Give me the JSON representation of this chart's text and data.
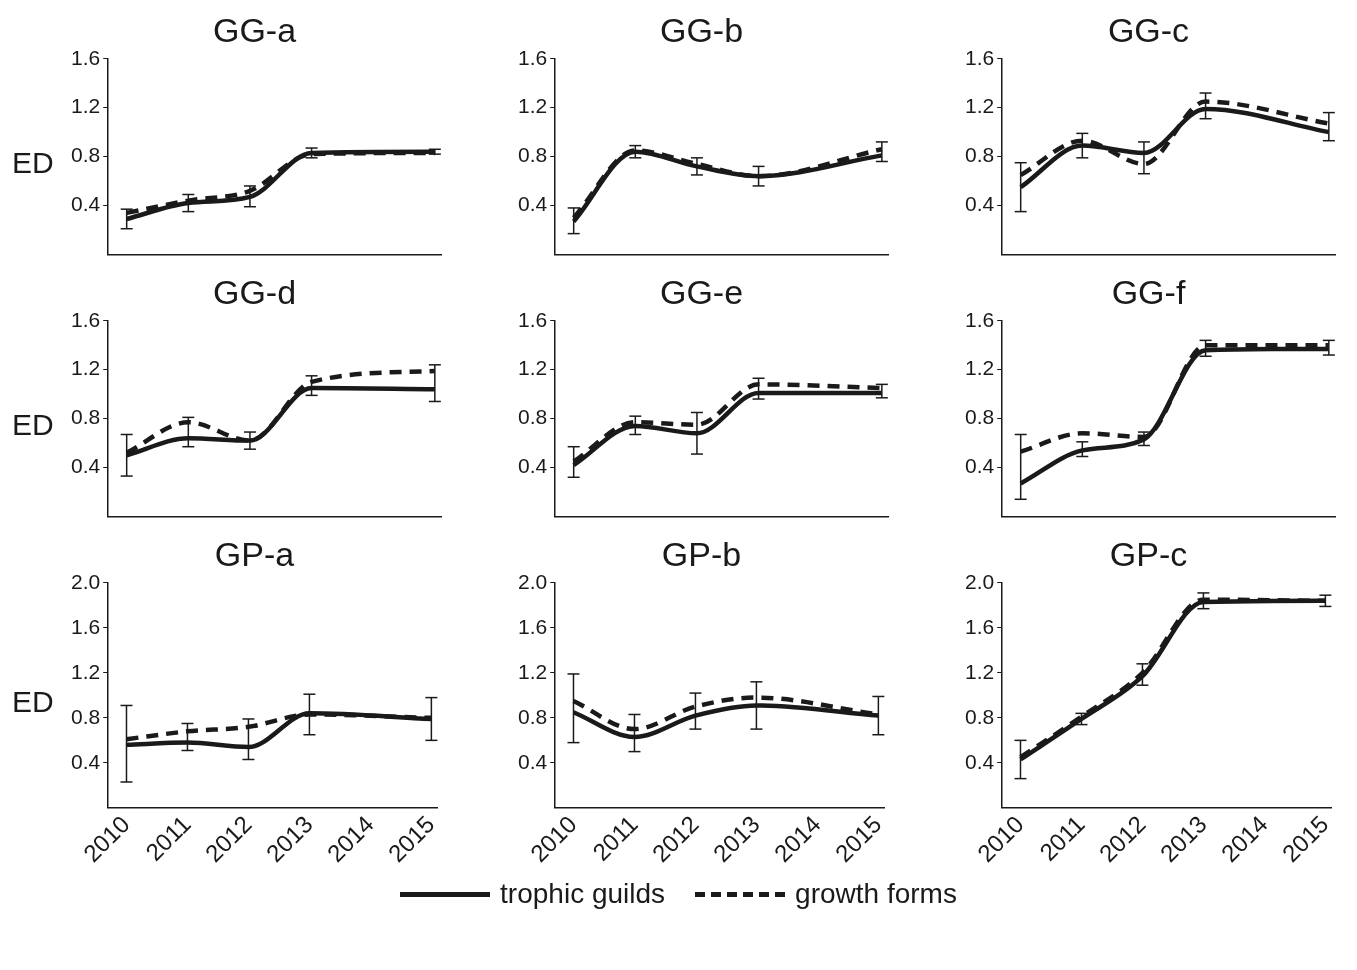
{
  "chart_data": [
    {
      "type": "line",
      "title": "GG-a",
      "ylabel": "ED",
      "x": [
        2010,
        2011,
        2012,
        2013,
        2015
      ],
      "xlim": [
        2009.7,
        2015.1
      ],
      "xticks": [
        2010,
        2011,
        2012,
        2013,
        2014,
        2015
      ],
      "ylim": [
        0,
        1.6
      ],
      "yticks": [
        0.4,
        0.8,
        1.2,
        1.6
      ],
      "tick_labels": "y",
      "grid": false,
      "marker": "none",
      "series": [
        {
          "color": "#1a1a1a",
          "line_style": "solid",
          "values": [
            0.29,
            0.42,
            0.47,
            0.83,
            0.84
          ],
          "errors": [
            [
              0.21,
              0.37
            ],
            [
              0.35,
              0.49
            ],
            [
              0.39,
              0.56
            ],
            [
              0.79,
              0.87
            ],
            [
              0.82,
              0.86
            ]
          ]
        },
        {
          "color": "#1a1a1a",
          "line_style": "dashed",
          "values": [
            0.34,
            0.44,
            0.52,
            0.82,
            0.83
          ]
        }
      ]
    },
    {
      "type": "line",
      "title": "GG-b",
      "x": [
        2010,
        2011,
        2012,
        2013,
        2015
      ],
      "xlim": [
        2009.7,
        2015.1
      ],
      "xticks": [
        2010,
        2011,
        2012,
        2013,
        2014,
        2015
      ],
      "ylim": [
        0,
        1.6
      ],
      "yticks": [
        0.4,
        0.8,
        1.2,
        1.6
      ],
      "tick_labels": "y",
      "grid": false,
      "marker": "none",
      "series": [
        {
          "color": "#1a1a1a",
          "line_style": "solid",
          "values": [
            0.27,
            0.84,
            0.72,
            0.64,
            0.81
          ],
          "errors": [
            [
              0.17,
              0.38
            ],
            [
              0.79,
              0.89
            ],
            [
              0.65,
              0.79
            ],
            [
              0.56,
              0.72
            ],
            [
              0.76,
              0.92
            ]
          ]
        },
        {
          "color": "#1a1a1a",
          "line_style": "dashed",
          "values": [
            0.3,
            0.85,
            0.74,
            0.64,
            0.86
          ]
        }
      ]
    },
    {
      "type": "line",
      "title": "GG-c",
      "x": [
        2010,
        2011,
        2012,
        2013,
        2015
      ],
      "xlim": [
        2009.7,
        2015.1
      ],
      "xticks": [
        2010,
        2011,
        2012,
        2013,
        2014,
        2015
      ],
      "ylim": [
        0,
        1.6
      ],
      "yticks": [
        0.4,
        0.8,
        1.2,
        1.6
      ],
      "tick_labels": "y",
      "grid": false,
      "marker": "none",
      "series": [
        {
          "color": "#1a1a1a",
          "line_style": "solid",
          "values": [
            0.55,
            0.89,
            0.83,
            1.19,
            1.0
          ],
          "errors": [
            [
              0.35,
              0.75
            ],
            [
              0.79,
              0.99
            ],
            [
              0.66,
              0.92
            ],
            [
              1.11,
              1.32
            ],
            [
              0.93,
              1.16
            ]
          ]
        },
        {
          "color": "#1a1a1a",
          "line_style": "dashed",
          "values": [
            0.65,
            0.93,
            0.74,
            1.25,
            1.07
          ]
        }
      ]
    },
    {
      "type": "line",
      "title": "GG-d",
      "ylabel": "ED",
      "x": [
        2010,
        2011,
        2012,
        2013,
        2015
      ],
      "xlim": [
        2009.7,
        2015.1
      ],
      "xticks": [
        2010,
        2011,
        2012,
        2013,
        2014,
        2015
      ],
      "ylim": [
        0,
        1.6
      ],
      "yticks": [
        0.4,
        0.8,
        1.2,
        1.6
      ],
      "tick_labels": "y",
      "grid": false,
      "marker": "none",
      "series": [
        {
          "color": "#1a1a1a",
          "line_style": "solid",
          "values": [
            0.5,
            0.64,
            0.62,
            1.05,
            1.04
          ],
          "errors": [
            [
              0.33,
              0.67
            ],
            [
              0.57,
              0.81
            ],
            [
              0.55,
              0.69
            ],
            [
              0.99,
              1.15
            ],
            [
              0.94,
              1.24
            ]
          ]
        },
        {
          "color": "#1a1a1a",
          "line_style": "dashed",
          "values": [
            0.52,
            0.77,
            0.62,
            1.1,
            1.19
          ]
        }
      ]
    },
    {
      "type": "line",
      "title": "GG-e",
      "x": [
        2010,
        2011,
        2012,
        2013,
        2015
      ],
      "xlim": [
        2009.7,
        2015.1
      ],
      "xticks": [
        2010,
        2011,
        2012,
        2013,
        2014,
        2015
      ],
      "ylim": [
        0,
        1.6
      ],
      "yticks": [
        0.4,
        0.8,
        1.2,
        1.6
      ],
      "tick_labels": "y",
      "grid": false,
      "marker": "none",
      "series": [
        {
          "color": "#1a1a1a",
          "line_style": "solid",
          "values": [
            0.42,
            0.74,
            0.68,
            1.01,
            1.01
          ],
          "errors": [
            [
              0.32,
              0.57
            ],
            [
              0.67,
              0.82
            ],
            [
              0.51,
              0.85
            ],
            [
              0.96,
              1.13
            ],
            [
              0.97,
              1.08
            ]
          ]
        },
        {
          "color": "#1a1a1a",
          "line_style": "dashed",
          "values": [
            0.45,
            0.77,
            0.75,
            1.08,
            1.05
          ]
        }
      ]
    },
    {
      "type": "line",
      "title": "GG-f",
      "x": [
        2010,
        2011,
        2012,
        2013,
        2015
      ],
      "xlim": [
        2009.7,
        2015.1
      ],
      "xticks": [
        2010,
        2011,
        2012,
        2013,
        2014,
        2015
      ],
      "ylim": [
        0,
        1.6
      ],
      "yticks": [
        0.4,
        0.8,
        1.2,
        1.6
      ],
      "tick_labels": "y",
      "grid": false,
      "marker": "none",
      "series": [
        {
          "color": "#1a1a1a",
          "line_style": "solid",
          "values": [
            0.27,
            0.54,
            0.63,
            1.36,
            1.37
          ],
          "errors": [
            [
              0.14,
              0.67
            ],
            [
              0.49,
              0.61
            ],
            [
              0.58,
              0.69
            ],
            [
              1.31,
              1.44
            ],
            [
              1.32,
              1.44
            ]
          ]
        },
        {
          "color": "#1a1a1a",
          "line_style": "dashed",
          "values": [
            0.53,
            0.68,
            0.65,
            1.4,
            1.4
          ]
        }
      ]
    },
    {
      "type": "line",
      "title": "GP-a",
      "ylabel": "ED",
      "x": [
        2010,
        2011,
        2012,
        2013,
        2015
      ],
      "xlim": [
        2009.7,
        2015.1
      ],
      "xticks": [
        2010,
        2011,
        2012,
        2013,
        2014,
        2015
      ],
      "ylim": [
        0,
        2.0
      ],
      "yticks": [
        {
          "value": 0.4,
          "label": "0.4"
        },
        {
          "value": 0.8,
          "label": "0.8"
        },
        {
          "value": 1.2,
          "label": "1.2"
        },
        {
          "value": 1.6,
          "label": "1.6"
        },
        {
          "value": 2.0,
          "label": "2.0"
        }
      ],
      "grid": false,
      "marker": "none",
      "series": [
        {
          "color": "#1a1a1a",
          "line_style": "solid",
          "values": [
            0.56,
            0.58,
            0.54,
            0.84,
            0.79
          ],
          "errors": [
            [
              0.23,
              0.91
            ],
            [
              0.51,
              0.75
            ],
            [
              0.43,
              0.79
            ],
            [
              0.65,
              1.01
            ],
            [
              0.6,
              0.98
            ]
          ]
        },
        {
          "color": "#1a1a1a",
          "line_style": "dashed",
          "values": [
            0.61,
            0.68,
            0.72,
            0.83,
            0.8
          ]
        }
      ]
    },
    {
      "type": "line",
      "title": "GP-b",
      "x": [
        2010,
        2011,
        2012,
        2013,
        2015
      ],
      "xlim": [
        2009.7,
        2015.1
      ],
      "xticks": [
        2010,
        2011,
        2012,
        2013,
        2014,
        2015
      ],
      "ylim": [
        0,
        2.0
      ],
      "yticks": [
        {
          "value": 0.4,
          "label": "0.4"
        },
        {
          "value": 0.8,
          "label": "0.8"
        },
        {
          "value": 1.2,
          "label": "1.2"
        },
        {
          "value": 1.6,
          "label": "1.6"
        },
        {
          "value": 2.0,
          "label": "2.0"
        }
      ],
      "grid": false,
      "marker": "none",
      "legend": "bottom",
      "series": [
        {
          "name": "trophic guilds",
          "color": "#1a1a1a",
          "line_style": "solid",
          "values": [
            0.85,
            0.63,
            0.82,
            0.91,
            0.82
          ],
          "errors": [
            [
              0.58,
              1.19
            ],
            [
              0.5,
              0.83
            ],
            [
              0.7,
              1.02
            ],
            [
              0.7,
              1.12
            ],
            [
              0.65,
              0.99
            ]
          ]
        },
        {
          "name": "growth forms",
          "color": "#1a1a1a",
          "line_style": "dashed",
          "values": [
            0.95,
            0.7,
            0.9,
            0.98,
            0.83
          ]
        }
      ]
    },
    {
      "type": "line",
      "title": "GP-c",
      "x": [
        2010,
        2011,
        2012,
        2013,
        2015
      ],
      "xlim": [
        2009.7,
        2015.1
      ],
      "xticks": [
        2010,
        2011,
        2012,
        2013,
        2014,
        2015
      ],
      "ylim": [
        0,
        2.0
      ],
      "yticks": [
        {
          "value": 0.4,
          "label": "0.4"
        },
        {
          "value": 0.8,
          "label": "0.8"
        },
        {
          "value": 1.2,
          "label": "1.2"
        },
        {
          "value": 1.6,
          "label": "1.6"
        },
        {
          "value": 2.0,
          "label": "2.0"
        }
      ],
      "grid": false,
      "marker": "none",
      "series": [
        {
          "color": "#1a1a1a",
          "line_style": "solid",
          "values": [
            0.43,
            0.79,
            1.17,
            1.83,
            1.84
          ],
          "errors": [
            [
              0.26,
              0.6
            ],
            [
              0.74,
              0.84
            ],
            [
              1.09,
              1.28
            ],
            [
              1.77,
              1.91
            ],
            [
              1.79,
              1.89
            ]
          ]
        },
        {
          "color": "#1a1a1a",
          "line_style": "dashed",
          "values": [
            0.45,
            0.81,
            1.2,
            1.85,
            1.84
          ]
        }
      ]
    }
  ]
}
